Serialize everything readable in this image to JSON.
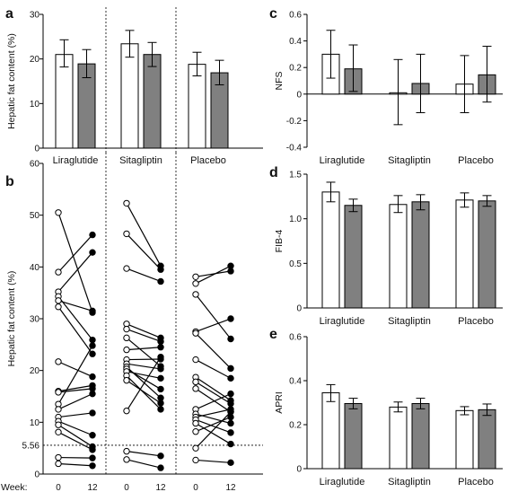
{
  "colors": {
    "week0": "#ffffff",
    "week12": "#808080",
    "stroke": "#000000"
  },
  "week_label": "Week:",
  "chart_data": [
    {
      "panel": "a",
      "type": "bar",
      "ylabel": "Hepatic fat content (%)",
      "ylim": [
        0,
        30
      ],
      "yticks": [
        0,
        10,
        20,
        30
      ],
      "categories": [
        "Liraglutide",
        "Sitagliptin",
        "Placebo"
      ],
      "series": [
        {
          "values": [
            21.0,
            23.4,
            18.8
          ],
          "err_low": [
            18.2,
            20.4,
            16.2
          ],
          "err_high": [
            24.3,
            26.4,
            21.5
          ]
        },
        {
          "values": [
            18.9,
            21.0,
            16.9
          ],
          "err_low": [
            15.8,
            18.3,
            14.2
          ],
          "err_high": [
            22.1,
            23.7,
            19.7
          ]
        }
      ]
    },
    {
      "panel": "b",
      "type": "line",
      "ylabel": "Hepatic fat content (%)",
      "ylim": [
        0,
        60
      ],
      "yticks": [
        0,
        10,
        20,
        30,
        40,
        50,
        60
      ],
      "reference_line": 5.56,
      "reference_label": "5.56",
      "x_ticks": [
        "0",
        "12"
      ],
      "groups": [
        {
          "name": "Liraglutide",
          "pairs": [
            [
              50.5,
              31.2
            ],
            [
              39.0,
              46.2
            ],
            [
              35.2,
              42.8
            ],
            [
              34.3,
              25.9
            ],
            [
              33.5,
              31.5
            ],
            [
              32.3,
              23.2
            ],
            [
              21.7,
              18.8
            ],
            [
              16.0,
              17.1
            ],
            [
              15.8,
              16.5
            ],
            [
              13.5,
              24.8
            ],
            [
              12.5,
              15.5
            ],
            [
              11.0,
              11.8
            ],
            [
              10.2,
              7.5
            ],
            [
              9.5,
              5.3
            ],
            [
              8.1,
              4.7
            ],
            [
              3.2,
              3.1
            ],
            [
              2.0,
              1.6
            ]
          ]
        },
        {
          "name": "Sitagliptin",
          "pairs": [
            [
              52.3,
              40.2
            ],
            [
              46.4,
              39.5
            ],
            [
              39.7,
              37.2
            ],
            [
              29.0,
              26.3
            ],
            [
              28.0,
              25.6
            ],
            [
              26.3,
              20.8
            ],
            [
              24.0,
              24.5
            ],
            [
              22.1,
              22.2
            ],
            [
              21.3,
              20.3
            ],
            [
              20.7,
              14.7
            ],
            [
              20.3,
              16.4
            ],
            [
              19.8,
              18.5
            ],
            [
              19.0,
              12.5
            ],
            [
              18.1,
              13.7
            ],
            [
              12.2,
              22.6
            ],
            [
              4.4,
              3.5
            ],
            [
              2.8,
              1.2
            ]
          ]
        },
        {
          "name": "Placebo",
          "pairs": [
            [
              38.1,
              39.2
            ],
            [
              36.8,
              40.2
            ],
            [
              34.7,
              26.1
            ],
            [
              27.5,
              30.0
            ],
            [
              27.2,
              20.4
            ],
            [
              22.1,
              18.5
            ],
            [
              18.7,
              14.2
            ],
            [
              17.8,
              13.6
            ],
            [
              16.5,
              12.0
            ],
            [
              12.5,
              15.5
            ],
            [
              11.6,
              9.8
            ],
            [
              11.0,
              12.5
            ],
            [
              10.5,
              8.0
            ],
            [
              9.8,
              5.8
            ],
            [
              8.2,
              11.0
            ],
            [
              5.0,
              12.0
            ],
            [
              2.7,
              2.2
            ]
          ]
        }
      ]
    },
    {
      "panel": "c",
      "type": "bar",
      "ylabel": "NFS",
      "ylim": [
        -0.4,
        0.6
      ],
      "yticks": [
        -0.4,
        -0.2,
        0.0,
        0.2,
        0.4,
        0.6
      ],
      "ytick_labels": [
        "-0.4",
        "-0.2",
        "0",
        "0.2",
        "0.4",
        "0.6"
      ],
      "categories": [
        "Liraglutide",
        "Sitagliptin",
        "Placebo"
      ],
      "series": [
        {
          "values": [
            0.3,
            0.01,
            0.075
          ],
          "err_low": [
            0.12,
            -0.23,
            -0.14
          ],
          "err_high": [
            0.48,
            0.26,
            0.29
          ]
        },
        {
          "values": [
            0.19,
            0.08,
            0.145
          ],
          "err_low": [
            0.02,
            -0.14,
            -0.06
          ],
          "err_high": [
            0.37,
            0.3,
            0.36
          ]
        }
      ]
    },
    {
      "panel": "d",
      "type": "bar",
      "ylabel": "FIB-4",
      "ylim": [
        0,
        1.5
      ],
      "yticks": [
        0,
        0.5,
        1.0,
        1.5
      ],
      "ytick_labels": [
        "0",
        "0.5",
        "1.0",
        "1.5"
      ],
      "categories": [
        "Liraglutide",
        "Sitagliptin",
        "Placebo"
      ],
      "series": [
        {
          "values": [
            1.3,
            1.16,
            1.21
          ],
          "err_low": [
            1.19,
            1.07,
            1.13
          ],
          "err_high": [
            1.41,
            1.26,
            1.29
          ]
        },
        {
          "values": [
            1.15,
            1.19,
            1.2
          ],
          "err_low": [
            1.08,
            1.1,
            1.14
          ],
          "err_high": [
            1.22,
            1.27,
            1.26
          ]
        }
      ]
    },
    {
      "panel": "e",
      "type": "bar",
      "ylabel": "APRI",
      "ylim": [
        0,
        0.6
      ],
      "yticks": [
        0,
        0.2,
        0.4,
        0.6
      ],
      "ytick_labels": [
        "0",
        "0.2",
        "0.4",
        "0.6"
      ],
      "categories": [
        "Liraglutide",
        "Sitagliptin",
        "Placebo"
      ],
      "series": [
        {
          "values": [
            0.345,
            0.28,
            0.264
          ],
          "err_low": [
            0.305,
            0.258,
            0.245
          ],
          "err_high": [
            0.382,
            0.303,
            0.282
          ]
        },
        {
          "values": [
            0.296,
            0.296,
            0.268
          ],
          "err_low": [
            0.272,
            0.272,
            0.242
          ],
          "err_high": [
            0.32,
            0.32,
            0.294
          ]
        }
      ]
    }
  ]
}
